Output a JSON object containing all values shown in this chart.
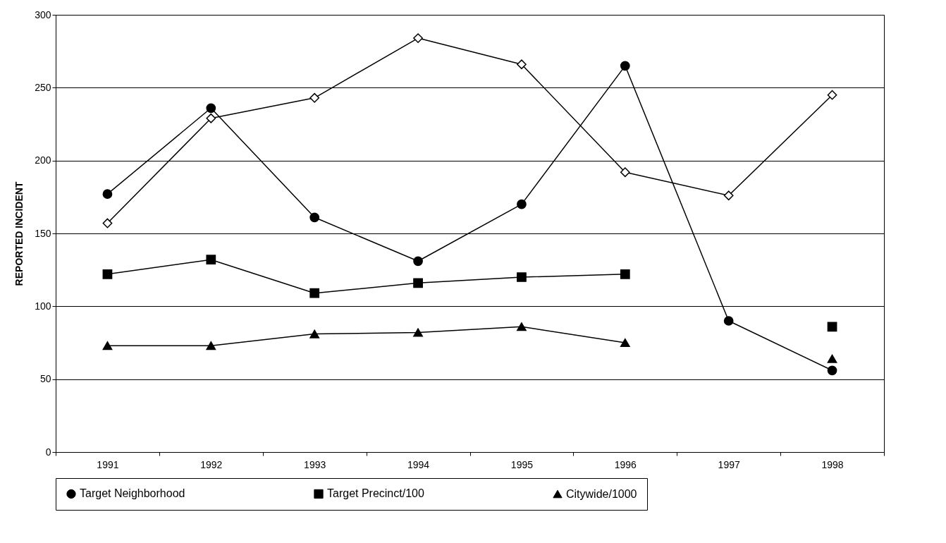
{
  "chart_data": {
    "type": "line",
    "ylabel": "REPORTED INCIDENT",
    "categories": [
      "1991",
      "1992",
      "1993",
      "1994",
      "1995",
      "1996",
      "1997",
      "1998"
    ],
    "ylim": [
      0,
      300
    ],
    "yticks": [
      0,
      50,
      100,
      150,
      200,
      250,
      300
    ],
    "grid": "y",
    "legend": "bottom",
    "series": [
      {
        "name": "Target Neighborhood",
        "color": "#000000",
        "marker": "circle",
        "values": [
          177,
          236,
          161,
          131,
          170,
          265,
          90,
          56
        ]
      },
      {
        "name": "Target Precinct/100",
        "color": "#000000",
        "marker": "square",
        "values": [
          122,
          132,
          109,
          116,
          120,
          122,
          null,
          86
        ]
      },
      {
        "name": "Citywide/1000",
        "color": "#000000",
        "marker": "triangle",
        "values": [
          73,
          73,
          81,
          82,
          86,
          75,
          null,
          64
        ]
      },
      {
        "color": "#000000",
        "marker": "diamond",
        "values": [
          157,
          229,
          243,
          284,
          266,
          192,
          176,
          245
        ]
      }
    ]
  }
}
